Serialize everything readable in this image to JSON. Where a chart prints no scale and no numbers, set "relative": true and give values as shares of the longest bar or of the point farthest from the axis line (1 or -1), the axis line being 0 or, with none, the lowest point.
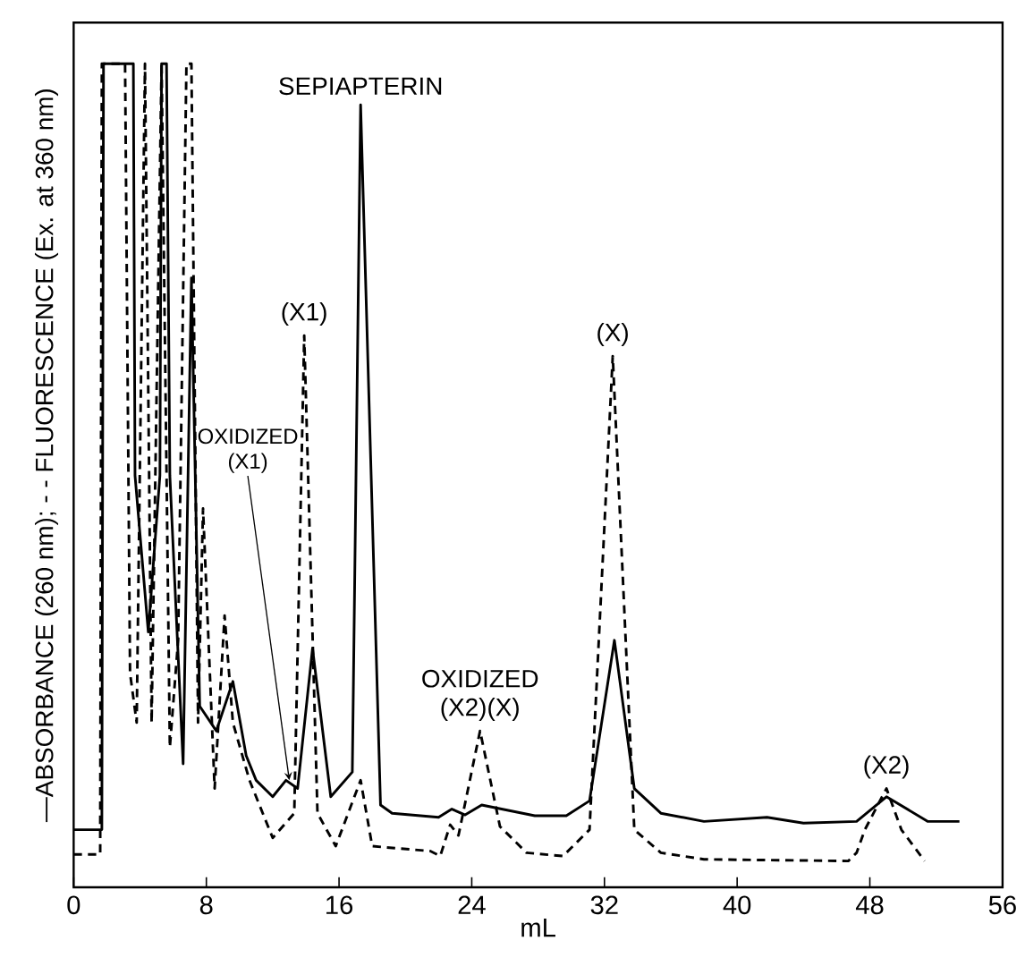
{
  "chart_data": {
    "type": "line",
    "relative": true,
    "xlabel": "mL",
    "ylabel": "—ABSORBANCE (260 nm); - - FLUORESCENCE (Ex. at 360 nm)",
    "xlim": [
      0,
      56
    ],
    "xticks": [
      0,
      8,
      16,
      24,
      32,
      40,
      48,
      56
    ],
    "series": [
      {
        "color": "#000000",
        "line_style": "solid",
        "x": [
          0,
          1.7,
          1.8,
          3.6,
          3.7,
          4.5,
          5.2,
          5.3,
          5.6,
          5.8,
          6.6,
          7.1,
          7.6,
          8.6,
          9.6,
          10.4,
          11.0,
          12.0,
          12.8,
          13.5,
          14.4,
          15.5,
          16.8,
          17.3,
          18.5,
          19.2,
          22.0,
          22.8,
          23.6,
          24.6,
          27.8,
          29.7,
          31.1,
          32.6,
          33.8,
          35.4,
          38.0,
          41.8,
          44.0,
          47.2,
          49.0,
          51.5,
          53.4
        ],
        "values": [
          0.07,
          0.07,
          1.0,
          1.0,
          0.5,
          0.31,
          0.5,
          1.0,
          1.0,
          0.5,
          0.15,
          0.74,
          0.22,
          0.19,
          0.25,
          0.16,
          0.13,
          0.11,
          0.13,
          0.12,
          0.29,
          0.11,
          0.14,
          0.95,
          0.1,
          0.09,
          0.085,
          0.095,
          0.088,
          0.1,
          0.087,
          0.087,
          0.105,
          0.3,
          0.12,
          0.09,
          0.08,
          0.085,
          0.078,
          0.08,
          0.11,
          0.08,
          0.08
        ]
      },
      {
        "color": "#000000",
        "line_style": "dashed",
        "x": [
          0,
          1.6,
          1.7,
          3.1,
          3.4,
          3.8,
          4.3,
          4.7,
          5.3,
          5.8,
          6.3,
          6.8,
          7.1,
          7.5,
          7.8,
          8.5,
          9.1,
          9.6,
          10.6,
          12.0,
          13.3,
          13.9,
          14.7,
          15.8,
          17.3,
          18.0,
          21.5,
          22.1,
          22.7,
          23.2,
          24.5,
          25.7,
          27.3,
          29.5,
          31.1,
          32.5,
          33.8,
          35.4,
          38.0,
          46.7,
          47.2,
          47.7,
          49.0,
          49.9,
          51.3
        ],
        "values": [
          0.04,
          0.04,
          1.0,
          1.0,
          0.26,
          0.2,
          1.0,
          0.2,
          1.0,
          0.17,
          0.3,
          1.0,
          1.0,
          0.2,
          0.46,
          0.12,
          0.33,
          0.2,
          0.13,
          0.06,
          0.09,
          0.67,
          0.09,
          0.05,
          0.13,
          0.05,
          0.044,
          0.038,
          0.076,
          0.063,
          0.19,
          0.074,
          0.042,
          0.038,
          0.07,
          0.645,
          0.07,
          0.042,
          0.034,
          0.032,
          0.042,
          0.07,
          0.12,
          0.07,
          0.032
        ]
      }
    ],
    "annotations": [
      {
        "text": "SEPIAPTERIN",
        "x": 17.3,
        "y": 0.95
      },
      {
        "text": "(X1)",
        "x": 13.9,
        "y": 0.67
      },
      {
        "text": "OXIDIZED (X1)",
        "x": 13.0,
        "y": 0.13
      },
      {
        "text": "OXIDIZED (X2)(X)",
        "x": 24.5,
        "y": 0.19
      },
      {
        "text": "(X)",
        "x": 32.5,
        "y": 0.645
      },
      {
        "text": "(X2)",
        "x": 49.0,
        "y": 0.12
      }
    ]
  }
}
